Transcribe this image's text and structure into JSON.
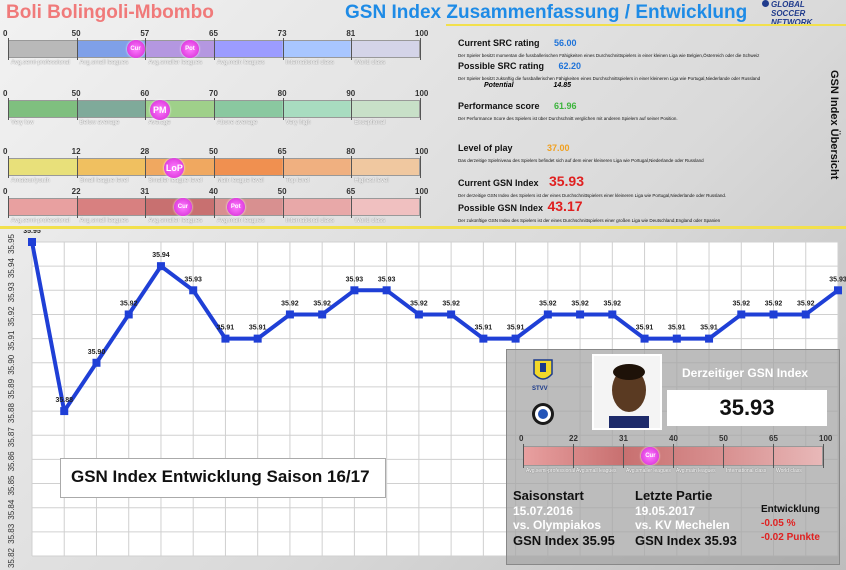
{
  "header": {
    "player_name": "Boli Bolingoli-Mbombo",
    "title": "GSN Index Zusammenfassung / Entwicklung",
    "logo": [
      "GLOBAL",
      "SOCCER",
      "NETWORK"
    ]
  },
  "scales": [
    {
      "ticks": [
        "0",
        "50",
        "57",
        "65",
        "73",
        "81",
        "100"
      ],
      "tick_values": [
        0,
        50,
        57,
        65,
        73,
        81,
        100
      ],
      "categories": [
        "Avg.semi-professional",
        "Avg.small leagues",
        "Avg.smaller leagues",
        "Avg.main leagues",
        "International class",
        "World class"
      ],
      "colors": [
        "#b9b9b9",
        "#7fa0e8",
        "#b497e0",
        "#9c9cff",
        "#a8c6ff",
        "#d4d4e8"
      ],
      "markers": [
        {
          "label": "Cur",
          "value": 56
        },
        {
          "label": "Pot",
          "value": 62.2
        }
      ]
    },
    {
      "ticks": [
        "0",
        "50",
        "60",
        "70",
        "80",
        "90",
        "100"
      ],
      "tick_values": [
        0,
        50,
        60,
        70,
        80,
        90,
        100
      ],
      "categories": [
        "Very low",
        "Below average",
        "Average",
        "Above average",
        "Very high",
        "Exceptional"
      ],
      "colors": [
        "#7fbf7f",
        "#7faa9a",
        "#9fd08a",
        "#8ac8a0",
        "#a8dcc0",
        "#c8e0c8"
      ],
      "markers": [
        {
          "label": "PM",
          "value": 61.96
        }
      ]
    },
    {
      "ticks": [
        "0",
        "12",
        "28",
        "50",
        "65",
        "80",
        "100"
      ],
      "tick_values": [
        0,
        12,
        28,
        50,
        65,
        80,
        100
      ],
      "categories": [
        "Amateur/youth",
        "Small league level",
        "Smaller league level",
        "Main league level",
        "Top level",
        "Highest level"
      ],
      "colors": [
        "#e8e07a",
        "#f0c060",
        "#f0a860",
        "#f09050",
        "#f0b080",
        "#f0c8a0"
      ],
      "markers": [
        {
          "label": "LoP",
          "value": 37
        }
      ]
    },
    {
      "ticks": [
        "0",
        "22",
        "31",
        "40",
        "50",
        "65",
        "100"
      ],
      "tick_values": [
        0,
        22,
        31,
        40,
        50,
        65,
        100
      ],
      "categories": [
        "Avg.semi-professional",
        "Avg.small leagues",
        "Avg.smaller leagues",
        "Avg.main leagues",
        "International class",
        "World class"
      ],
      "colors": [
        "#e8a0a0",
        "#d88080",
        "#c87070",
        "#d89090",
        "#e8a8a8",
        "#f0c0c0"
      ],
      "markers": [
        {
          "label": "Cur",
          "value": 35.93
        },
        {
          "label": "Pot",
          "value": 43.17
        }
      ]
    }
  ],
  "info": {
    "current_src_label": "Current SRC rating",
    "current_src_value": "56.00",
    "current_src_desc": "Der Spieler besitzt momentan die fussballerischen Fähigkeiten eines Durchschnittspielers in einer kleinen Liga wie Belgien,Österreich oder die Schweiz",
    "possible_src_label": "Possible SRC rating",
    "possible_src_value": "62.20",
    "possible_src_desc": "Der Spieler besitzt zukünftig die fussballerischen Fähigkeiten eines Durchschnittspielers in einer kleineren Liga wie Portugal,Niederlande oder Russland",
    "potential_label": "Potential",
    "potential_value": "14.85",
    "performance_label": "Performance score",
    "performance_value": "61.96",
    "performance_desc": "Der Performance Score des Spielers ist über Durchschnitt verglichen mit anderen Spielern auf seiner Position.",
    "level_label": "Level of play",
    "level_value": "37.00",
    "level_desc": "Das derzeitige Spielniveau des Spielers befindet sich auf dem einer kleineren Liga wie Portugal,Niederlande oder Russland",
    "current_gsn_label": "Current GSN Index",
    "current_gsn_value": "35.93",
    "current_gsn_desc": "Der derzeitige GSN Index des Spielers ist der eines Durchschnittspielers einer kleineren Liga wie Portugal,Niederlande oder Russland.",
    "possible_gsn_label": "Possible GSN Index",
    "possible_gsn_value": "43.17",
    "possible_gsn_desc": "Der zukünftige GSN Index des Spielers ist der eines Durchschnittspielers einer großen Liga wie Deutschland,England oder Spanien",
    "side_title": "GSN Index Übersicht",
    "colors": {
      "blue": "#1e73d9",
      "green": "#3cb43c",
      "orange": "#f0a020",
      "red": "#e02020"
    }
  },
  "chart_data": {
    "type": "line",
    "title": "GSN Index Entwicklung Saison 16/17",
    "y_ticks": [
      "35.95",
      "35.94",
      "35.93",
      "35.92",
      "35.91",
      "35.90",
      "35.89",
      "35.88",
      "35.87",
      "35.86",
      "35.85",
      "35.84",
      "35.83",
      "35.82"
    ],
    "ylim": [
      35.82,
      35.95
    ],
    "values": [
      35.95,
      35.88,
      35.9,
      35.92,
      35.94,
      35.93,
      35.91,
      35.91,
      35.92,
      35.92,
      35.93,
      35.93,
      35.92,
      35.92,
      35.91,
      35.91,
      35.92,
      35.92,
      35.92,
      35.91,
      35.91,
      35.91,
      35.92,
      35.92,
      35.92,
      35.93
    ],
    "labels": [
      "35.95",
      "35.88",
      "35.90",
      "35.92",
      "35.94",
      "35.93",
      "35.91",
      "35.91",
      "35.92",
      "35.92",
      "35.93",
      "35.93",
      "35.92",
      "35.92",
      "35.91",
      "35.91",
      "35.92",
      "35.92",
      "35.92",
      "35.91",
      "35.91",
      "35.91",
      "35.92",
      "35.92",
      "35.92",
      "35.93"
    ],
    "line_color": "#1f3fd6",
    "grid": true
  },
  "current_panel": {
    "label": "Derzeitiger GSN Index",
    "value": "35.93",
    "scale_ticks": [
      "0",
      "22",
      "31",
      "40",
      "50",
      "65",
      "100"
    ],
    "scale_categories": [
      "Avg.semi-professional",
      "Avg.small leagues",
      "Avg.smaller leagues",
      "Avg.main leagues",
      "International class",
      "World class"
    ],
    "marker_value": 35.93,
    "marker_label": "Cur",
    "club1_text": "STVV",
    "season_start_label": "Saisonstart",
    "season_start_date": "15.07.2016",
    "season_start_opponent": "vs. Olympiakos",
    "season_start_index": "GSN Index 35.95",
    "last_match_label": "Letzte Partie",
    "last_match_date": "19.05.2017",
    "last_match_opponent": "vs. KV Mechelen",
    "last_match_index": "GSN Index 35.93",
    "dev_label": "Entwicklung",
    "dev_percent": "-0.05 %",
    "dev_points": "-0.02 Punkte"
  }
}
